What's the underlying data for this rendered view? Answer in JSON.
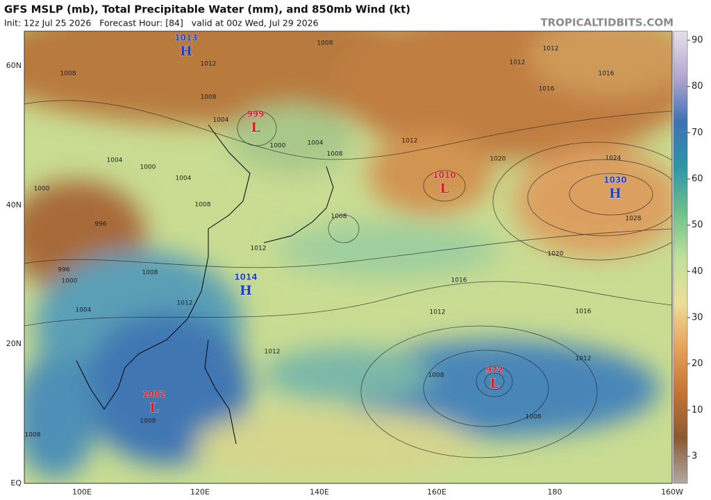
{
  "header": {
    "title": "GFS MSLP (mb), Total Precipitable Water (mm), and 850mb Wind (kt)",
    "subtitle": "Init: 12z Jul 25 2026   Forecast Hour: [84]   valid at 00z Wed, Jul 29 2026",
    "watermark": "TROPICALTIDBITS.COM"
  },
  "map": {
    "lat_labels": [
      "60N",
      "40N",
      "20N",
      "EQ"
    ],
    "lon_labels": [
      "100E",
      "120E",
      "140E",
      "160E",
      "180",
      "160W"
    ],
    "pressure_centers": [
      {
        "value": "1013",
        "symbol": "H"
      },
      {
        "value": "999",
        "symbol": "L"
      },
      {
        "value": "1010",
        "symbol": "L"
      },
      {
        "value": "1030",
        "symbol": "H"
      },
      {
        "value": "1014",
        "symbol": "H"
      },
      {
        "value": "1002",
        "symbol": "L"
      },
      {
        "value": "972",
        "symbol": "L"
      }
    ],
    "isobar_labels": [
      "1008",
      "1012",
      "1012",
      "1016",
      "1016",
      "1012",
      "1008",
      "1008",
      "1004",
      "1004",
      "1008",
      "1012",
      "1000",
      "1004",
      "1000",
      "1004",
      "1008",
      "1000",
      "996",
      "996",
      "1000",
      "1008",
      "1012",
      "1004",
      "1008",
      "1012",
      "1020",
      "1024",
      "1028",
      "1020",
      "1016",
      "1016",
      "1012",
      "1012",
      "1008",
      "1012",
      "1008",
      "1008",
      "1008"
    ]
  },
  "colorbar": {
    "ticks": [
      90,
      80,
      70,
      60,
      50,
      40,
      30,
      20,
      10,
      3
    ]
  }
}
